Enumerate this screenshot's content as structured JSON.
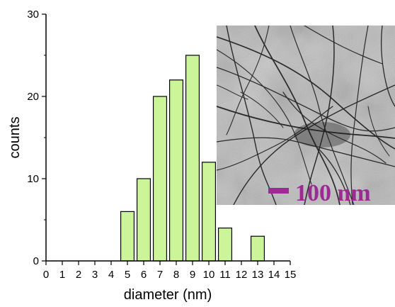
{
  "chart_data": {
    "type": "bar",
    "title": "",
    "xlabel": "diameter (nm)",
    "ylabel": "counts",
    "xlim": [
      0,
      15
    ],
    "ylim": [
      0,
      30
    ],
    "x_ticks": [
      0,
      1,
      2,
      3,
      4,
      5,
      6,
      7,
      8,
      9,
      10,
      11,
      12,
      13,
      14,
      15
    ],
    "y_ticks": [
      0,
      10,
      20,
      30
    ],
    "categories": [
      5,
      6,
      7,
      8,
      9,
      10,
      11,
      13
    ],
    "values": [
      6,
      10,
      20,
      22,
      25,
      12,
      4,
      3
    ],
    "bar_color": "#ccf59a",
    "bar_edge_color": "#000000",
    "grid": false
  },
  "inset": {
    "description_icon": "tem-micrograph-nanofibers",
    "scale_bar_label": "100 nm",
    "scale_bar_color": "#9b2a94"
  }
}
